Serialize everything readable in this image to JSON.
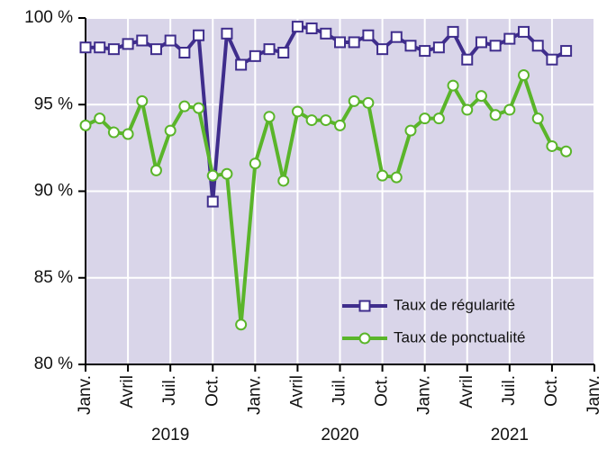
{
  "chart_data": {
    "type": "line",
    "categories": [
      "Janv.",
      null,
      null,
      "Avril",
      null,
      null,
      "Juil.",
      null,
      null,
      "Oct.",
      null,
      null,
      "Janv.",
      null,
      null,
      "Avril",
      null,
      null,
      "Juil.",
      null,
      null,
      "Oct.",
      null,
      null,
      "Janv.",
      null,
      null,
      "Avril",
      null,
      null,
      "Juil.",
      null,
      null,
      "Oct.",
      null,
      null,
      "Janv."
    ],
    "year_labels": [
      "2019",
      "2020",
      "2021"
    ],
    "series": [
      {
        "name": "Taux de régularité",
        "color": "#3f2d8c",
        "marker": "square",
        "values": [
          98.3,
          98.3,
          98.2,
          98.5,
          98.7,
          98.2,
          98.7,
          98.0,
          99.0,
          89.4,
          99.1,
          97.3,
          97.8,
          98.2,
          98.0,
          99.5,
          99.4,
          99.1,
          98.6,
          98.6,
          99.0,
          98.2,
          98.9,
          98.4,
          98.1,
          98.3,
          99.2,
          97.6,
          98.6,
          98.4,
          98.8,
          99.2,
          98.4,
          97.6,
          98.1,
          null,
          null
        ]
      },
      {
        "name": "Taux de ponctualité",
        "color": "#5ab52a",
        "marker": "circle",
        "values": [
          93.8,
          94.2,
          93.4,
          93.3,
          95.2,
          91.2,
          93.5,
          94.9,
          94.8,
          90.9,
          91.0,
          82.3,
          91.6,
          94.3,
          90.6,
          94.6,
          94.1,
          94.1,
          93.8,
          95.2,
          95.1,
          90.9,
          90.8,
          93.5,
          94.2,
          94.2,
          96.1,
          94.7,
          95.5,
          94.4,
          94.7,
          96.7,
          94.2,
          92.6,
          92.3,
          null,
          null
        ]
      }
    ],
    "ylim": [
      80,
      100
    ],
    "yticks": [
      {
        "value": 80,
        "label": "80 %"
      },
      {
        "value": 85,
        "label": "85 %"
      },
      {
        "value": 90,
        "label": "90 %"
      },
      {
        "value": 95,
        "label": "95 %"
      },
      {
        "value": 100,
        "label": "100 %"
      }
    ],
    "grid": true,
    "legend": "lower-right"
  }
}
